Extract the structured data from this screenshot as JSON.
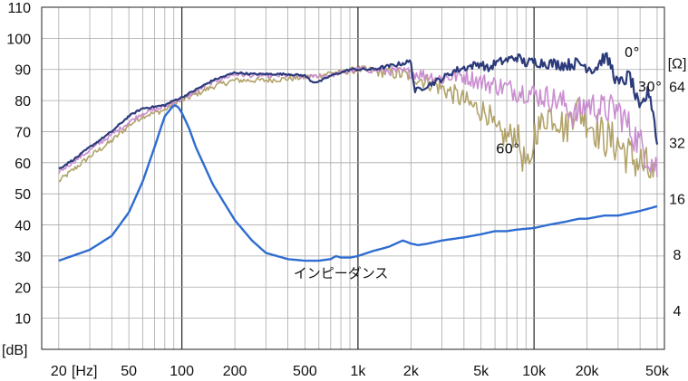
{
  "chart_data": {
    "type": "line",
    "x_scale": "log",
    "xlim": [
      16,
      55000
    ],
    "x_ticks": [
      {
        "value": 20,
        "label": "20"
      },
      {
        "value": 100,
        "label": "100"
      },
      {
        "value": 200,
        "label": "200"
      },
      {
        "value": 500,
        "label": "500"
      },
      {
        "value": 1000,
        "label": "1k"
      },
      {
        "value": 2000,
        "label": "2k"
      },
      {
        "value": 5000,
        "label": "5k"
      },
      {
        "value": 10000,
        "label": "10k"
      },
      {
        "value": 20000,
        "label": "20k"
      },
      {
        "value": 50000,
        "label": "50k"
      }
    ],
    "x_unit_label": "[Hz]",
    "x_unit_near": 28,
    "extra_x_tick": {
      "value": 50,
      "label": "50"
    },
    "major_verticals": [
      100,
      1000,
      10000
    ],
    "grid": true,
    "ylim": [
      0,
      110
    ],
    "y_ticks": [
      10,
      20,
      30,
      40,
      50,
      60,
      70,
      80,
      90,
      100,
      110
    ],
    "y_unit_label": "[dB]",
    "y2_unit_label": "[Ω]",
    "y2_ticks": [
      {
        "value": 4,
        "at_db": 12.5
      },
      {
        "value": 8,
        "at_db": 30.5
      },
      {
        "value": 16,
        "at_db": 48.5
      },
      {
        "value": 32,
        "at_db": 66.5
      },
      {
        "value": 64,
        "at_db": 84.5
      }
    ],
    "series": [
      {
        "name": "0°",
        "color": "#2b3a7a",
        "width": 2.2,
        "jitter": 0.6,
        "x": [
          20,
          25,
          30,
          40,
          50,
          60,
          70,
          80,
          90,
          100,
          120,
          150,
          200,
          250,
          300,
          400,
          500,
          550,
          600,
          650,
          700,
          800,
          900,
          1000,
          1200,
          1500,
          1800,
          2000,
          2100,
          2300,
          2500,
          3000,
          3500,
          4000,
          5000,
          5500,
          6000,
          7000,
          8000,
          9000,
          10000,
          12000,
          15000,
          18000,
          20000,
          22000,
          25000,
          27000,
          30000,
          35000,
          40000,
          42000,
          45000,
          48000,
          50000
        ],
        "y": [
          58,
          61.5,
          65,
          70,
          75,
          77.5,
          78,
          78.5,
          80,
          81,
          83.5,
          86.5,
          89,
          88.5,
          88.5,
          88.5,
          88,
          86,
          86,
          87,
          88,
          89,
          90,
          90,
          90,
          91,
          92,
          92.5,
          83,
          84,
          85,
          87,
          89.5,
          90.5,
          92,
          90,
          92,
          93,
          94,
          92,
          92.5,
          92,
          91.5,
          92,
          91,
          90,
          94,
          92,
          85,
          88,
          76,
          80,
          83,
          75,
          65
        ]
      },
      {
        "name": "30°",
        "color": "#c98dd0",
        "width": 1.6,
        "jitter": 1.4,
        "x": [
          20,
          30,
          40,
          50,
          60,
          70,
          80,
          90,
          100,
          120,
          150,
          200,
          250,
          300,
          400,
          500,
          600,
          700,
          800,
          1000,
          1200,
          1500,
          2000,
          2500,
          3000,
          3500,
          4000,
          5000,
          6000,
          7000,
          8000,
          9000,
          10000,
          12000,
          15000,
          17000,
          20000,
          25000,
          30000,
          35000,
          40000,
          45000,
          50000
        ],
        "y": [
          57,
          64,
          69,
          73,
          76,
          77,
          78,
          79.5,
          80.5,
          83,
          86,
          88.5,
          88,
          88,
          88,
          87.5,
          88,
          88,
          89,
          90,
          90,
          89.5,
          89,
          88,
          87,
          88,
          88,
          86,
          85,
          84,
          83,
          83,
          82,
          81,
          79,
          75,
          79,
          77,
          77,
          71,
          66,
          62,
          58
        ]
      },
      {
        "name": "60°",
        "color": "#b2a36a",
        "width": 1.6,
        "jitter": 1.8,
        "x": [
          20,
          30,
          40,
          50,
          60,
          70,
          80,
          90,
          100,
          120,
          150,
          200,
          250,
          300,
          400,
          500,
          600,
          700,
          800,
          1000,
          1200,
          1500,
          2000,
          2500,
          3000,
          3500,
          4000,
          4500,
          5000,
          5500,
          6000,
          7000,
          8000,
          8500,
          9000,
          9500,
          10000,
          11000,
          12000,
          14000,
          15000,
          17000,
          20000,
          25000,
          30000,
          35000,
          40000,
          45000,
          50000
        ],
        "y": [
          54,
          62,
          67,
          72,
          75,
          76,
          77,
          79,
          80,
          82,
          84.5,
          86.5,
          86.5,
          86.5,
          87,
          87.5,
          88,
          89,
          89,
          90,
          89.5,
          89,
          88,
          86,
          84,
          82,
          80,
          78,
          77,
          76,
          70,
          68,
          70,
          62,
          60,
          56,
          70,
          72,
          76,
          74,
          70,
          78,
          74,
          68,
          66,
          62,
          60,
          57,
          52
        ]
      },
      {
        "name": "インピーダンス",
        "color": "#2e6cd1",
        "width": 2.4,
        "jitter": 0,
        "x": [
          20,
          30,
          40,
          50,
          60,
          70,
          80,
          90,
          95,
          100,
          110,
          120,
          150,
          200,
          250,
          300,
          400,
          500,
          600,
          700,
          750,
          800,
          900,
          1000,
          1200,
          1500,
          1800,
          2000,
          2200,
          2500,
          3000,
          4000,
          5000,
          6000,
          7000,
          8000,
          10000,
          12000,
          15000,
          18000,
          20000,
          25000,
          30000,
          40000,
          50000
        ],
        "y": [
          28.5,
          32,
          36.5,
          44,
          54,
          65,
          75,
          78.5,
          78,
          76,
          71,
          65,
          53,
          41.5,
          35,
          31,
          29,
          28.5,
          28.5,
          29,
          30,
          29.5,
          29.5,
          30,
          31.5,
          33,
          35,
          34,
          33.5,
          34,
          35,
          36,
          37,
          38,
          38,
          38.5,
          39,
          40,
          41,
          42,
          42,
          43,
          43,
          44.5,
          46
        ]
      }
    ],
    "annotations": [
      {
        "text": "0°",
        "x": 36000,
        "y": 94
      },
      {
        "text": "30°",
        "x": 45500,
        "y": 83
      },
      {
        "text": "60°",
        "x": 7100,
        "y": 63
      },
      {
        "text": "インピーダンス",
        "x": 800,
        "y": 23
      }
    ]
  }
}
